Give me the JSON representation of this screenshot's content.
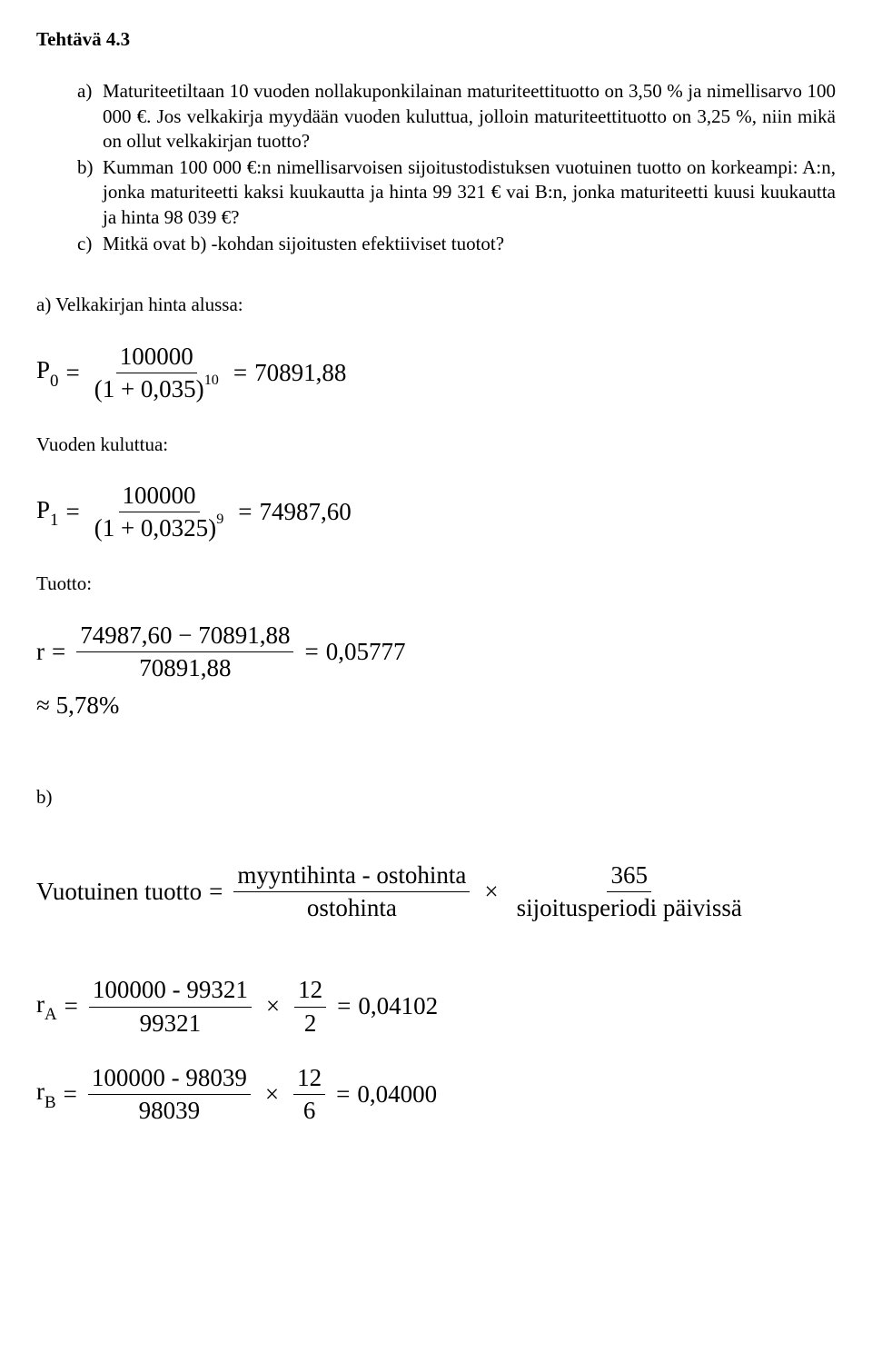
{
  "title": "Tehtävä 4.3",
  "tasks": {
    "a": {
      "letter": "a)",
      "text": "Maturiteetiltaan 10 vuoden nollakuponkilainan maturiteettituotto on 3,50 % ja nimellisarvo 100 000 €. Jos velkakirja myydään vuoden kuluttua, jolloin maturiteettituotto on 3,25 %, niin mikä on ollut velkakirjan tuotto?"
    },
    "b": {
      "letter": "b)",
      "text": "Kumman 100 000 €:n nimellisarvoisen sijoitustodistuksen vuotuinen tuotto on korkeampi: A:n, jonka maturiteetti kaksi kuukautta ja hinta 99 321 € vai B:n, jonka maturiteetti kuusi kuukautta ja hinta 98 039 €?"
    },
    "c": {
      "letter": "c)",
      "text": "Mitkä ovat b) -kohdan sijoitusten efektiiviset tuotot?"
    }
  },
  "sections": {
    "a_heading": "a) Velkakirjan hinta alussa:",
    "vuoden_kuluttua": "Vuoden kuluttua:",
    "tuotto": "Tuotto:",
    "b_label": "b)",
    "vuotuinen_tuotto_label": "Vuotuinen tuotto"
  },
  "eq": {
    "P0": {
      "lhs": "P",
      "sub": "0",
      "eqs": "=",
      "num": "100000",
      "den_base": "(1 + 0,035)",
      "den_exp": "10",
      "result": "70891,88"
    },
    "P1": {
      "lhs": "P",
      "sub": "1",
      "eqs": "=",
      "num": "100000",
      "den_base": "(1 + 0,0325)",
      "den_exp": "9",
      "result": "74987,60"
    },
    "r": {
      "lhs": "r",
      "eqs": "=",
      "num": "74987,60 − 70891,88",
      "den": "70891,88",
      "result": "0,05777",
      "approx": "≈ 5,78%"
    },
    "annual": {
      "eqs": "=",
      "frac1_num": "myyntihinta - ostohinta",
      "frac1_den": "ostohinta",
      "times": "×",
      "frac2_num": "365",
      "frac2_den": "sijoitusperiodi päivissä"
    },
    "rA": {
      "lhs": "r",
      "sub": "A",
      "eqs": "=",
      "frac1_num": "100000 - 99321",
      "frac1_den": "99321",
      "times": "×",
      "frac2_num": "12",
      "frac2_den": "2",
      "result": "0,04102"
    },
    "rB": {
      "lhs": "r",
      "sub": "B",
      "eqs": "=",
      "frac1_num": "100000 - 98039",
      "frac1_den": "98039",
      "times": "×",
      "frac2_num": "12",
      "frac2_den": "6",
      "result": "0,04000"
    }
  }
}
